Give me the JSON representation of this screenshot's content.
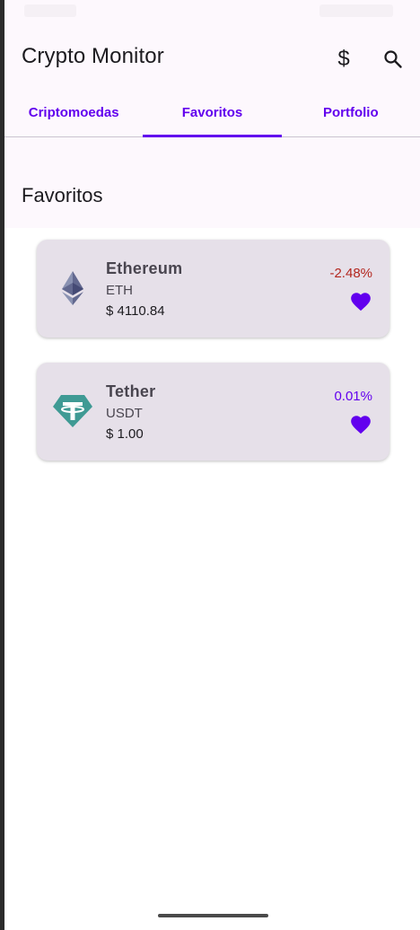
{
  "app": {
    "title": "Crypto Monitor",
    "currency_icon": "$",
    "accent_color": "#6200ee"
  },
  "tabs": [
    {
      "label": "Criptomoedas",
      "active": false
    },
    {
      "label": "Favoritos",
      "active": true
    },
    {
      "label": "Portfolio",
      "active": false
    }
  ],
  "section": {
    "title": "Favoritos"
  },
  "favorites": [
    {
      "name": "Ethereum",
      "symbol": "ETH",
      "price": "$ 4110.84",
      "change": "-2.48%",
      "change_color": "#b3261e",
      "icon": "ethereum-logo-icon",
      "favorited": true
    },
    {
      "name": "Tether",
      "symbol": "USDT",
      "price": "$ 1.00",
      "change": "0.01%",
      "change_color": "#6200ee",
      "icon": "tether-logo-icon",
      "favorited": true
    }
  ]
}
